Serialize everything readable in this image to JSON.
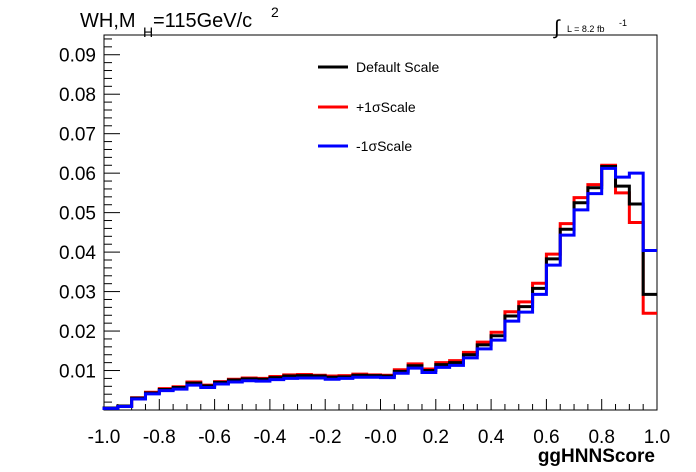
{
  "chart_data": {
    "type": "step",
    "title_parts": {
      "main": "WH,M",
      "sub": "H",
      "rest": "=115GeV/c",
      "sup": "2"
    },
    "lumi": {
      "symbol": "∫",
      "text": "L = 8.2 fb",
      "sup": "-1"
    },
    "xlabel": "ggHNNScore",
    "ylabel": "",
    "xlim": [
      -1.0,
      1.0
    ],
    "ylim": [
      0.0,
      0.095
    ],
    "x_ticks": [
      -1.0,
      -0.8,
      -0.6,
      -0.4,
      -0.2,
      0.0,
      0.2,
      0.4,
      0.6,
      0.8,
      1.0
    ],
    "x_tick_labels": [
      "-1.0",
      "-0.8",
      "-0.6",
      "-0.4",
      "-0.2",
      "-0.0",
      "0.2",
      "0.4",
      "0.6",
      "0.8",
      "1.0"
    ],
    "y_ticks": [
      0.01,
      0.02,
      0.03,
      0.04,
      0.05,
      0.06,
      0.07,
      0.08,
      0.09
    ],
    "y_tick_labels": [
      "0.01",
      "0.02",
      "0.03",
      "0.04",
      "0.05",
      "0.06",
      "0.07",
      "0.08",
      "0.09"
    ],
    "bin_edges": [
      -1.0,
      -0.95,
      -0.9,
      -0.85,
      -0.8,
      -0.75,
      -0.7,
      -0.65,
      -0.6,
      -0.55,
      -0.5,
      -0.45,
      -0.4,
      -0.35,
      -0.3,
      -0.25,
      -0.2,
      -0.15,
      -0.1,
      -0.05,
      0.0,
      0.05,
      0.1,
      0.15,
      0.2,
      0.25,
      0.3,
      0.35,
      0.4,
      0.45,
      0.5,
      0.55,
      0.6,
      0.65,
      0.7,
      0.75,
      0.8,
      0.85,
      0.9,
      0.95,
      1.0
    ],
    "legend_position": "top-center",
    "series": [
      {
        "name": "Default Scale",
        "color": "#000000",
        "values": [
          0.0005,
          0.001,
          0.003,
          0.0043,
          0.0052,
          0.0057,
          0.0068,
          0.0061,
          0.007,
          0.0076,
          0.0079,
          0.0078,
          0.0082,
          0.0086,
          0.0087,
          0.0086,
          0.0083,
          0.0084,
          0.0088,
          0.0087,
          0.0086,
          0.0098,
          0.0112,
          0.01,
          0.0115,
          0.012,
          0.014,
          0.0165,
          0.0188,
          0.0238,
          0.0262,
          0.0308,
          0.0383,
          0.0458,
          0.0525,
          0.0563,
          0.0617,
          0.0567,
          0.0522,
          0.0293
        ]
      },
      {
        "name": "+1σScale",
        "color": "#ff0000",
        "values": [
          0.0005,
          0.001,
          0.0031,
          0.0045,
          0.0054,
          0.0059,
          0.0071,
          0.0063,
          0.0072,
          0.0078,
          0.0081,
          0.008,
          0.0085,
          0.0089,
          0.009,
          0.0088,
          0.0086,
          0.0087,
          0.0091,
          0.0089,
          0.0088,
          0.0102,
          0.0117,
          0.0104,
          0.012,
          0.0125,
          0.0146,
          0.0172,
          0.0197,
          0.0249,
          0.0274,
          0.0321,
          0.0395,
          0.0472,
          0.0538,
          0.0571,
          0.062,
          0.055,
          0.0475,
          0.0245
        ]
      },
      {
        "name": "-1σScale",
        "color": "#0000ff",
        "values": [
          0.0004,
          0.0009,
          0.0028,
          0.0041,
          0.0049,
          0.0053,
          0.0063,
          0.0057,
          0.0066,
          0.0071,
          0.0074,
          0.0073,
          0.0077,
          0.008,
          0.0081,
          0.0081,
          0.0078,
          0.008,
          0.0083,
          0.0083,
          0.0082,
          0.0093,
          0.0106,
          0.0095,
          0.0108,
          0.0113,
          0.0132,
          0.0155,
          0.0177,
          0.0225,
          0.0248,
          0.0293,
          0.0367,
          0.0443,
          0.0507,
          0.0548,
          0.0612,
          0.059,
          0.06,
          0.0404
        ]
      }
    ]
  }
}
